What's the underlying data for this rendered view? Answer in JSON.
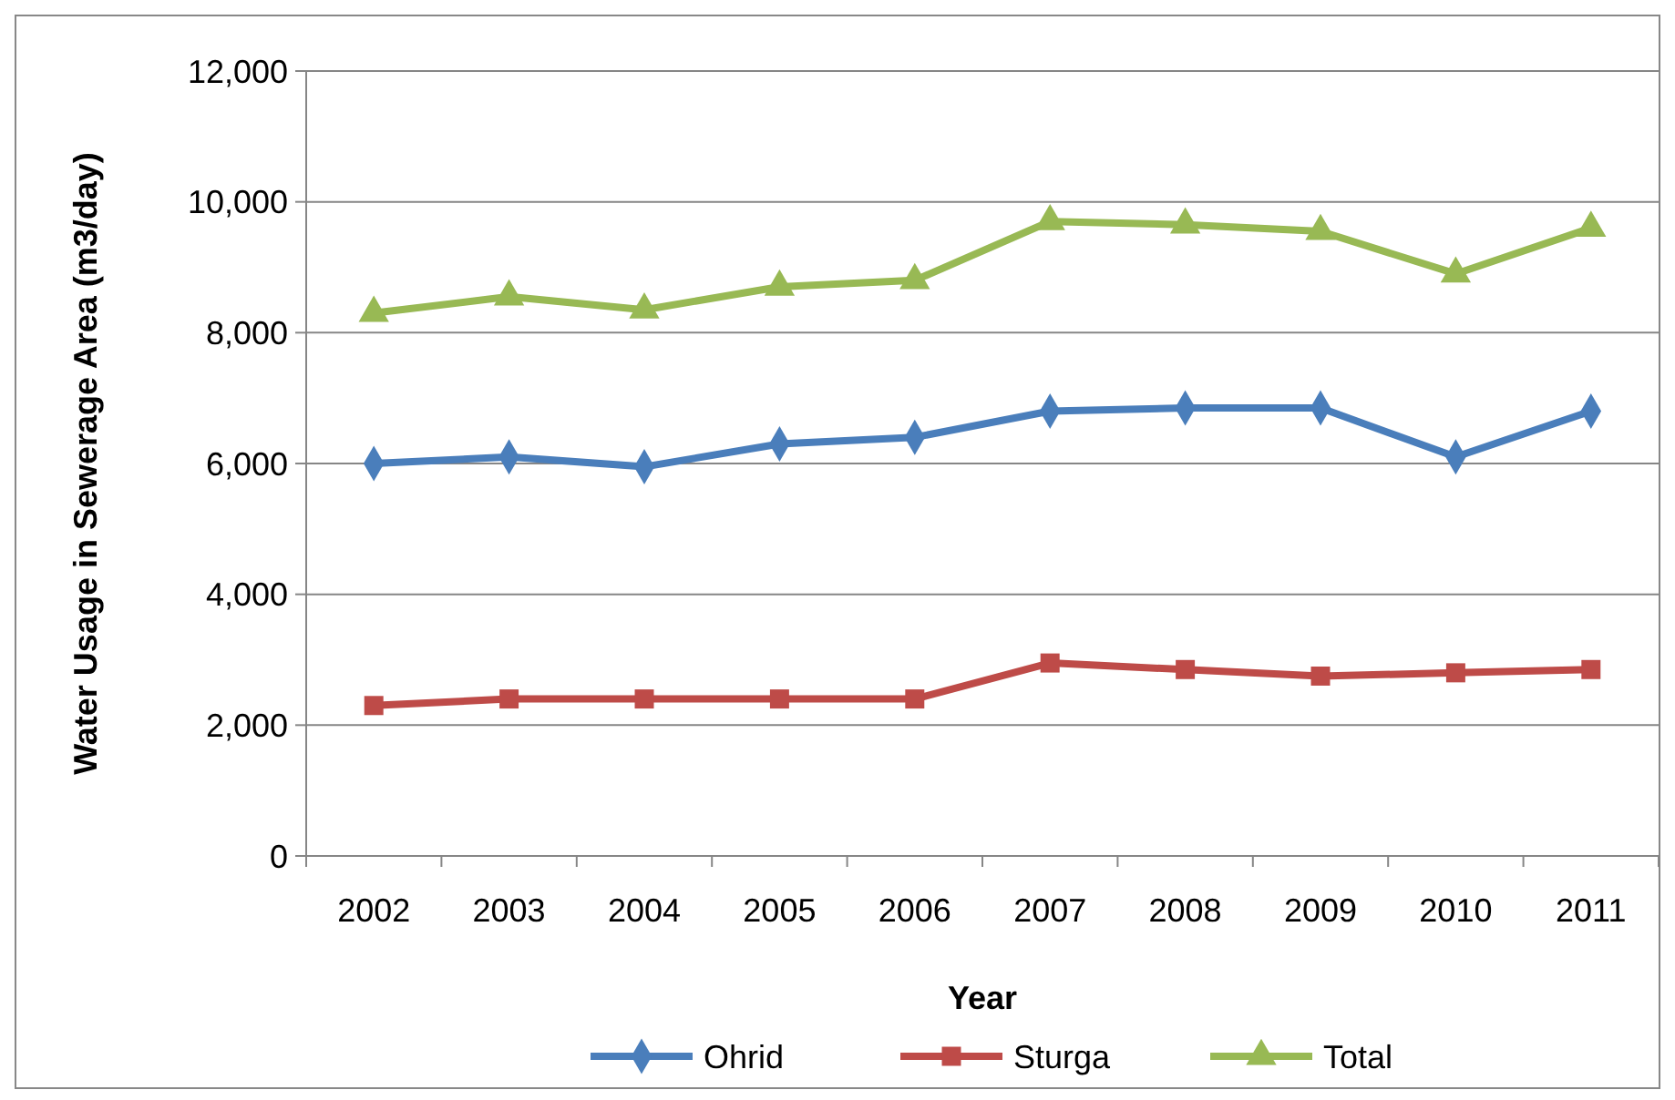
{
  "chart_data": {
    "type": "line",
    "xlabel": "Year",
    "ylabel": "Water Usage in Sewerage Area (m3/day)",
    "categories": [
      "2002",
      "2003",
      "2004",
      "2005",
      "2006",
      "2007",
      "2008",
      "2009",
      "2010",
      "2011"
    ],
    "ylim": [
      0,
      12000
    ],
    "yticks": [
      {
        "value": 0,
        "label": "0"
      },
      {
        "value": 2000,
        "label": "2,000"
      },
      {
        "value": 4000,
        "label": "4,000"
      },
      {
        "value": 6000,
        "label": "6,000"
      },
      {
        "value": 8000,
        "label": "8,000"
      },
      {
        "value": 10000,
        "label": "10,000"
      },
      {
        "value": 12000,
        "label": "12,000"
      }
    ],
    "grid": "y",
    "legend": "bottom",
    "line_style": "solid",
    "series": [
      {
        "name": "Ohrid",
        "color": "#4a7ebb",
        "marker": "diamond",
        "values": [
          6000,
          6100,
          5950,
          6300,
          6400,
          6800,
          6850,
          6850,
          6100,
          6800
        ]
      },
      {
        "name": "Sturga",
        "color": "#be4b48",
        "marker": "square",
        "values": [
          2300,
          2400,
          2400,
          2400,
          2400,
          2950,
          2850,
          2750,
          2800,
          2850
        ]
      },
      {
        "name": "Total",
        "color": "#98b954",
        "marker": "triangle",
        "values": [
          8300,
          8550,
          8350,
          8700,
          8800,
          9700,
          9650,
          9550,
          8900,
          9600
        ]
      }
    ]
  }
}
